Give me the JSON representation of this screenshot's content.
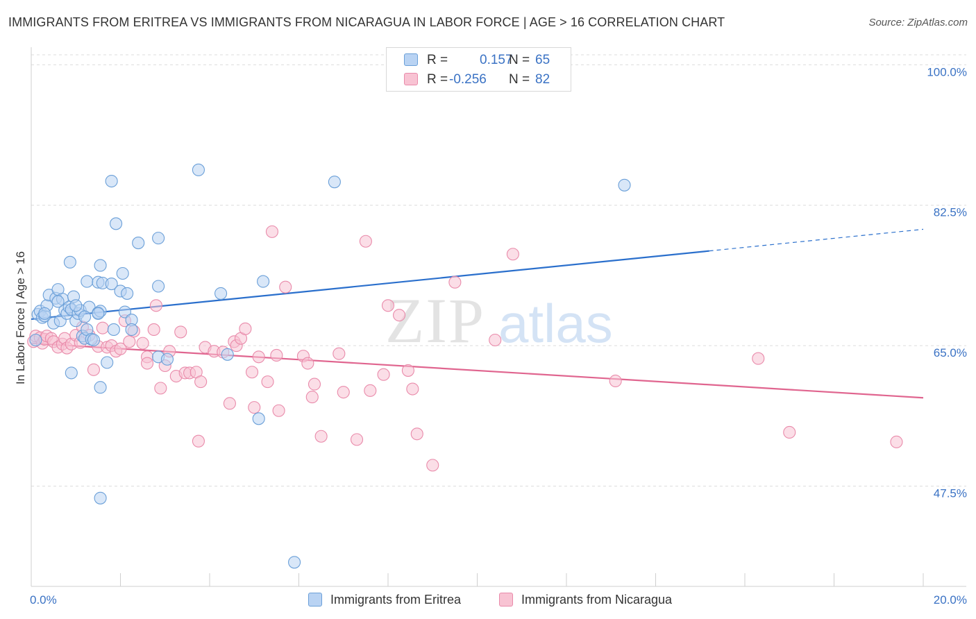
{
  "header": {
    "title": "IMMIGRANTS FROM ERITREA VS IMMIGRANTS FROM NICARAGUA IN LABOR FORCE | AGE > 16 CORRELATION CHART",
    "source": "Source: ZipAtlas.com"
  },
  "legend": {
    "r_label": "R =",
    "n_label": "N =",
    "rows": [
      {
        "r": "0.157",
        "n": "65"
      },
      {
        "r": "-0.256",
        "n": "82"
      }
    ]
  },
  "watermark": {
    "zip": "ZIP",
    "atlas": "atlas"
  },
  "colors": {
    "eritrea_fill": "#b9d3f3",
    "eritrea_stroke": "#6a9fd8",
    "eritrea_line": "#2a6fcc",
    "nicaragua_fill": "#f8c3d3",
    "nicaragua_stroke": "#e98aaa",
    "nicaragua_line": "#e0658f",
    "axis_label": "#3a72c4",
    "grid": "#dcdcdc"
  },
  "chart_data": {
    "type": "scatter",
    "title": "IMMIGRANTS FROM ERITREA VS IMMIGRANTS FROM NICARAGUA IN LABOR FORCE | AGE > 16 CORRELATION CHART",
    "xlabel": "",
    "ylabel": "In Labor Force | Age > 16",
    "xlim": [
      0,
      20
    ],
    "ylim": [
      35,
      101.5
    ],
    "x_tick_labels": [
      "0.0%",
      "20.0%"
    ],
    "y_ticks": [
      47.5,
      65.0,
      82.5,
      100.0
    ],
    "y_tick_labels": [
      "47.5%",
      "65.0%",
      "82.5%",
      "100.0%"
    ],
    "grid": true,
    "legend_position": "top-center",
    "series": [
      {
        "name": "Immigrants from Eritrea",
        "r": 0.157,
        "n": 65,
        "trend": {
          "x": [
            0,
            15.2
          ],
          "y": [
            68.3,
            76.8
          ],
          "dashed_extension_to": [
            20,
            79.5
          ]
        },
        "points": [
          [
            0.1,
            65.7
          ],
          [
            0.15,
            68.9
          ],
          [
            0.2,
            69.3
          ],
          [
            0.25,
            68.5
          ],
          [
            0.3,
            68.7
          ],
          [
            0.35,
            70.0
          ],
          [
            0.4,
            71.3
          ],
          [
            0.5,
            67.8
          ],
          [
            0.55,
            70.9
          ],
          [
            0.6,
            72.0
          ],
          [
            0.65,
            68.1
          ],
          [
            0.7,
            70.8
          ],
          [
            0.75,
            69.4
          ],
          [
            0.8,
            69.0
          ],
          [
            0.85,
            69.8
          ],
          [
            0.9,
            69.5
          ],
          [
            0.95,
            71.1
          ],
          [
            1.0,
            68.1
          ],
          [
            1.05,
            69.0
          ],
          [
            0.9,
            61.6
          ],
          [
            1.1,
            69.4
          ],
          [
            1.15,
            66.2
          ],
          [
            1.2,
            65.9
          ],
          [
            1.25,
            67.0
          ],
          [
            1.3,
            69.8
          ],
          [
            1.35,
            65.8
          ],
          [
            1.4,
            65.7
          ],
          [
            1.5,
            69.1
          ],
          [
            0.87,
            75.4
          ],
          [
            1.25,
            73.0
          ],
          [
            1.5,
            72.9
          ],
          [
            1.6,
            72.8
          ],
          [
            1.55,
            69.3
          ],
          [
            1.7,
            62.9
          ],
          [
            1.55,
            59.8
          ],
          [
            1.55,
            46.0
          ],
          [
            1.5,
            69.0
          ],
          [
            1.85,
            67.0
          ],
          [
            1.55,
            75.0
          ],
          [
            1.8,
            72.7
          ],
          [
            2.0,
            71.8
          ],
          [
            2.05,
            74.0
          ],
          [
            2.1,
            69.2
          ],
          [
            2.15,
            71.5
          ],
          [
            2.25,
            68.2
          ],
          [
            2.25,
            67.0
          ],
          [
            1.8,
            85.5
          ],
          [
            1.9,
            80.2
          ],
          [
            2.4,
            77.8
          ],
          [
            2.85,
            78.4
          ],
          [
            2.85,
            72.4
          ],
          [
            2.85,
            63.6
          ],
          [
            3.05,
            63.3
          ],
          [
            3.75,
            86.9
          ],
          [
            4.25,
            71.5
          ],
          [
            4.4,
            63.9
          ],
          [
            5.2,
            73.0
          ],
          [
            5.1,
            55.9
          ],
          [
            5.9,
            38.0
          ],
          [
            6.8,
            85.4
          ],
          [
            13.3,
            85.0
          ],
          [
            0.3,
            69.0
          ],
          [
            0.6,
            70.5
          ],
          [
            1.0,
            70.0
          ],
          [
            1.2,
            68.6
          ]
        ]
      },
      {
        "name": "Immigrants from Nicaragua",
        "r": -0.256,
        "n": 82,
        "trend": {
          "x": [
            0,
            20
          ],
          "y": [
            65.3,
            58.5
          ]
        },
        "points": [
          [
            0.05,
            65.5
          ],
          [
            0.1,
            66.2
          ],
          [
            0.2,
            66.0
          ],
          [
            0.25,
            65.3
          ],
          [
            0.3,
            65.8
          ],
          [
            0.35,
            66.2
          ],
          [
            0.45,
            65.9
          ],
          [
            0.5,
            65.5
          ],
          [
            0.6,
            64.8
          ],
          [
            0.7,
            65.2
          ],
          [
            0.75,
            65.9
          ],
          [
            0.8,
            64.7
          ],
          [
            0.9,
            65.2
          ],
          [
            1.0,
            66.3
          ],
          [
            1.1,
            65.4
          ],
          [
            1.15,
            67.3
          ],
          [
            1.3,
            66.3
          ],
          [
            1.4,
            62.0
          ],
          [
            1.5,
            64.9
          ],
          [
            1.6,
            67.2
          ],
          [
            1.7,
            64.8
          ],
          [
            1.8,
            65.0
          ],
          [
            1.9,
            64.3
          ],
          [
            2.0,
            64.6
          ],
          [
            2.1,
            68.1
          ],
          [
            2.2,
            65.5
          ],
          [
            2.3,
            66.8
          ],
          [
            2.5,
            65.3
          ],
          [
            2.6,
            63.6
          ],
          [
            2.6,
            62.8
          ],
          [
            2.75,
            67.0
          ],
          [
            2.8,
            70.0
          ],
          [
            2.9,
            59.7
          ],
          [
            3.0,
            62.5
          ],
          [
            3.1,
            64.3
          ],
          [
            3.25,
            61.2
          ],
          [
            3.35,
            66.7
          ],
          [
            3.45,
            61.6
          ],
          [
            3.55,
            61.6
          ],
          [
            3.7,
            61.7
          ],
          [
            3.8,
            60.5
          ],
          [
            3.75,
            53.1
          ],
          [
            3.9,
            64.8
          ],
          [
            4.1,
            64.3
          ],
          [
            4.3,
            64.2
          ],
          [
            4.45,
            57.8
          ],
          [
            4.55,
            65.5
          ],
          [
            4.6,
            65.0
          ],
          [
            4.7,
            65.9
          ],
          [
            4.8,
            67.1
          ],
          [
            4.95,
            61.7
          ],
          [
            5.0,
            57.3
          ],
          [
            5.1,
            63.6
          ],
          [
            5.3,
            60.5
          ],
          [
            5.5,
            63.8
          ],
          [
            5.55,
            56.9
          ],
          [
            5.7,
            72.3
          ],
          [
            6.1,
            63.7
          ],
          [
            6.2,
            62.8
          ],
          [
            6.35,
            60.2
          ],
          [
            6.5,
            53.7
          ],
          [
            6.9,
            64.0
          ],
          [
            7.0,
            59.2
          ],
          [
            7.3,
            53.3
          ],
          [
            7.6,
            59.4
          ],
          [
            7.9,
            61.4
          ],
          [
            8.0,
            70.0
          ],
          [
            8.25,
            68.8
          ],
          [
            8.45,
            61.9
          ],
          [
            8.55,
            59.6
          ],
          [
            8.65,
            54.0
          ],
          [
            9.0,
            50.1
          ],
          [
            9.5,
            72.9
          ],
          [
            10.4,
            65.7
          ],
          [
            10.8,
            76.4
          ],
          [
            13.1,
            60.6
          ],
          [
            16.3,
            63.4
          ],
          [
            17.0,
            54.2
          ],
          [
            19.4,
            53.0
          ],
          [
            6.3,
            58.6
          ],
          [
            5.4,
            79.2
          ],
          [
            7.5,
            78.0
          ]
        ]
      }
    ]
  }
}
